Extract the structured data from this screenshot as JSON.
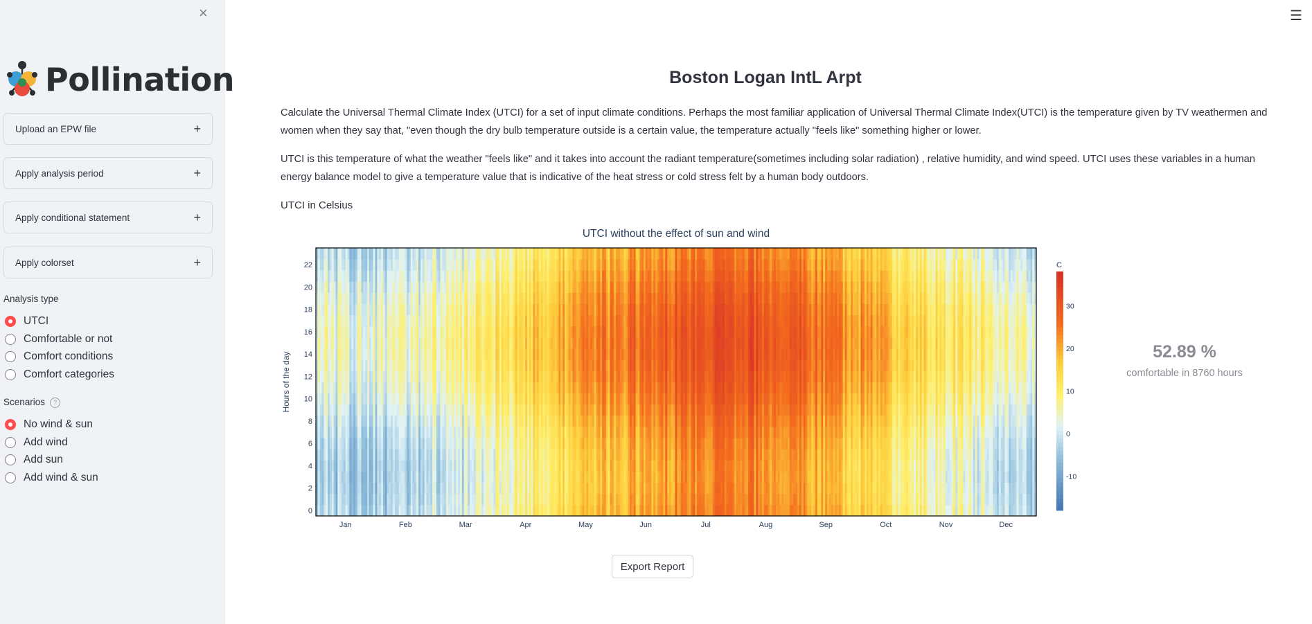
{
  "sidebar": {
    "close_glyph": "×",
    "logo_text": "Pollination",
    "expanders": [
      {
        "label": "Upload an EPW file",
        "icon": "plus-icon"
      },
      {
        "label": "Apply analysis period",
        "icon": "plus-icon"
      },
      {
        "label": "Apply conditional statement",
        "icon": "plus-icon"
      },
      {
        "label": "Apply colorset",
        "icon": "plus-icon"
      }
    ],
    "analysis_type": {
      "label": "Analysis type",
      "options": [
        "UTCI",
        "Comfortable or not",
        "Comfort conditions",
        "Comfort categories"
      ],
      "selected": "UTCI"
    },
    "scenarios": {
      "label": "Scenarios",
      "options": [
        "No wind & sun",
        "Add wind",
        "Add sun",
        "Add wind & sun"
      ],
      "selected": "No wind & sun"
    }
  },
  "main": {
    "title": "Boston Logan IntL Arpt",
    "paragraph_1": "Calculate the Universal Thermal Climate Index (UTCI) for a set of input climate conditions. Perhaps the most familiar application of Universal Thermal Climate Index(UTCI) is the temperature given by TV weathermen and women when they say that, \"even though the dry bulb temperature outside is a certain value, the temperature actually \"feels like\" something higher or lower.",
    "paragraph_2": "UTCI is this temperature of what the weather \"feels like\" and it takes into account the radiant temperature(sometimes including solar radiation) , relative humidity, and wind speed. UTCI uses these variables in a human energy balance model to give a temperature value that is indicative of the heat stress or cold stress felt by a human body outdoors.",
    "utci_label": "UTCI in Celsius",
    "metric": {
      "value": "52.89 %",
      "label": "comfortable in 8760 hours"
    },
    "export_label": "Export Report"
  },
  "colors": {
    "accent": "#ff4b4b",
    "sidebar_bg": "#f0f2f6"
  },
  "chart_data": {
    "type": "heatmap",
    "title": "UTCI  without the effect of sun and wind",
    "xlabel": "",
    "ylabel": "Hours of the day",
    "x_tick_labels": [
      "Jan",
      "Feb",
      "Mar",
      "Apr",
      "May",
      "Jun",
      "Jul",
      "Aug",
      "Sep",
      "Oct",
      "Nov",
      "Dec"
    ],
    "y_tick_labels": [
      "0",
      "2",
      "4",
      "6",
      "8",
      "10",
      "12",
      "14",
      "16",
      "18",
      "20",
      "22"
    ],
    "ylim": [
      0,
      23
    ],
    "colorbar": {
      "title": "C",
      "ticks": [
        "30",
        "20",
        "10",
        "0",
        "-10"
      ],
      "range": [
        -18,
        38
      ]
    },
    "days": 365,
    "hours": 24,
    "monthly_mean_utci": [
      -1,
      0,
      4,
      12,
      19,
      24,
      28,
      27,
      22,
      14,
      8,
      3
    ],
    "daily_amplitude": 4,
    "grid": false
  }
}
